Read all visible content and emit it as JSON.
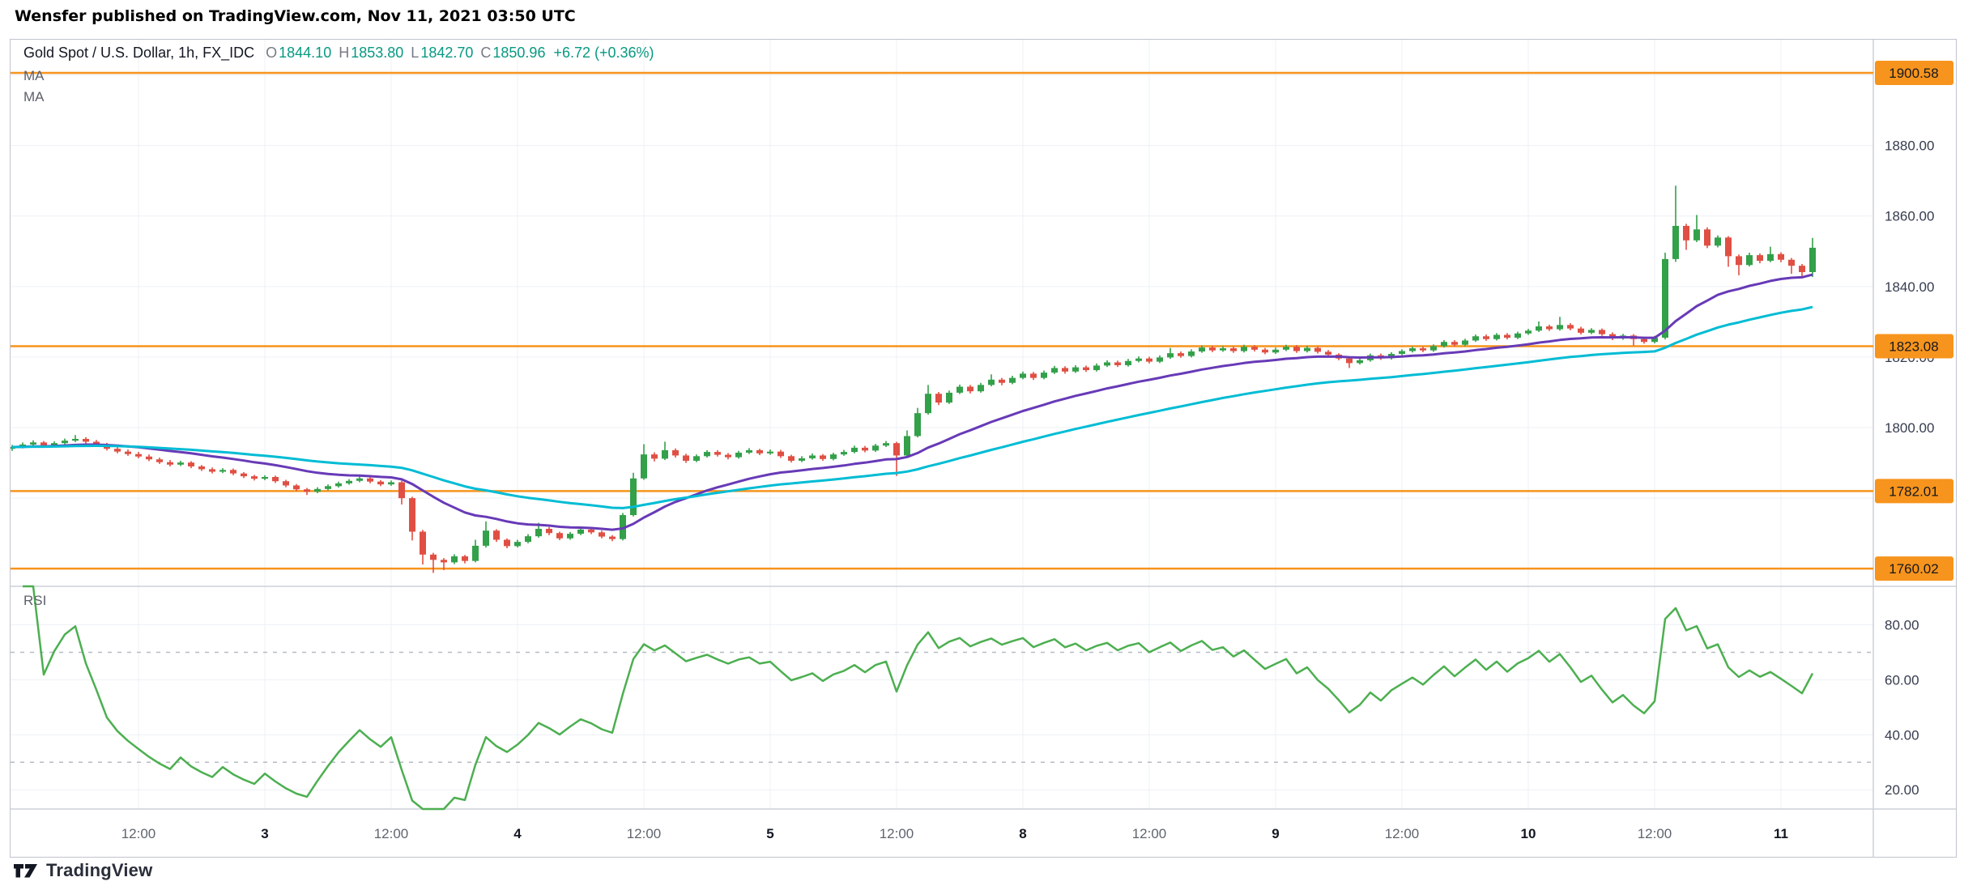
{
  "publish_header": "Wensfer published on TradingView.com, Nov 11, 2021 03:50 UTC",
  "footer": {
    "brand": "TradingView"
  },
  "legend": {
    "symbol_title": "Gold Spot / U.S. Dollar, 1h, FX_IDC",
    "ohlc": {
      "o_label": "O",
      "o": "1844.10",
      "h_label": "H",
      "h": "1853.80",
      "l_label": "L",
      "l": "1842.70",
      "c_label": "C",
      "c": "1850.96",
      "change": "+6.72 (+0.36%)"
    },
    "ma1_label": "MA",
    "ma2_label": "MA",
    "rsi_label": "RSI"
  },
  "colors": {
    "up": "#33a04a",
    "down": "#e04f43",
    "level": "#f7941d",
    "grid": "#edf0f6",
    "pane_border": "#ccd0d9",
    "axis_text": "#363c4e",
    "time_major": "#131722",
    "time_minor": "#5f646e",
    "badge_text": "#15181e",
    "rsi_band": "#b6bac4",
    "ohlc_value": "#089981",
    "label_gray": "#787b86"
  },
  "chart_data": {
    "type": "candlestick",
    "title": "Gold Spot / U.S. Dollar, 1h, FX_IDC",
    "legend_position": "top-left",
    "grid": true,
    "price_axis": {
      "min": 1755,
      "max": 1910,
      "ticks": [
        1900,
        1880,
        1860,
        1840,
        1820,
        1800,
        1780,
        1760
      ]
    },
    "time_ticks": [
      {
        "i": 12,
        "label": "12:00",
        "major": false
      },
      {
        "i": 24,
        "label": "3",
        "major": true
      },
      {
        "i": 36,
        "label": "12:00",
        "major": false
      },
      {
        "i": 48,
        "label": "4",
        "major": true
      },
      {
        "i": 60,
        "label": "12:00",
        "major": false
      },
      {
        "i": 72,
        "label": "5",
        "major": true
      },
      {
        "i": 84,
        "label": "12:00",
        "major": false
      },
      {
        "i": 96,
        "label": "8",
        "major": true
      },
      {
        "i": 108,
        "label": "12:00",
        "major": false
      },
      {
        "i": 120,
        "label": "9",
        "major": true
      },
      {
        "i": 132,
        "label": "12:00",
        "major": false
      },
      {
        "i": 144,
        "label": "10",
        "major": true
      },
      {
        "i": 156,
        "label": "12:00",
        "major": false
      },
      {
        "i": 168,
        "label": "11",
        "major": true
      }
    ],
    "levels": [
      {
        "price": 1900.58,
        "label": "1900.58"
      },
      {
        "price": 1823.08,
        "label": "1823.08"
      },
      {
        "price": 1782.01,
        "label": "1782.01"
      },
      {
        "price": 1760.02,
        "label": "1760.02"
      }
    ],
    "overlays": [
      {
        "name": "MA",
        "period": 21,
        "color": "#673ab7"
      },
      {
        "name": "MA",
        "period": 50,
        "color": "#00bcd4"
      }
    ],
    "rsi": {
      "name": "RSI",
      "period": 14,
      "color": "#4caf50",
      "axis": {
        "min": 13,
        "max": 94,
        "ticks": [
          80,
          60,
          40,
          20
        ],
        "bands": [
          70,
          30
        ]
      }
    },
    "candles_ohlc": [
      [
        1794.0,
        1795.1,
        1793.4,
        1794.5
      ],
      [
        1794.5,
        1795.8,
        1794.1,
        1795.2
      ],
      [
        1795.2,
        1796.4,
        1794.8,
        1795.8
      ],
      [
        1795.8,
        1796.2,
        1794.5,
        1795.0
      ],
      [
        1795.0,
        1796.1,
        1794.6,
        1795.6
      ],
      [
        1795.6,
        1796.9,
        1795.2,
        1796.3
      ],
      [
        1796.3,
        1797.9,
        1795.9,
        1796.8
      ],
      [
        1796.8,
        1797.3,
        1795.5,
        1796.0
      ],
      [
        1796.0,
        1796.5,
        1794.7,
        1795.2
      ],
      [
        1795.2,
        1795.7,
        1793.5,
        1794.0
      ],
      [
        1794.0,
        1794.6,
        1792.7,
        1793.2
      ],
      [
        1793.2,
        1793.8,
        1792.0,
        1792.5
      ],
      [
        1792.5,
        1793.1,
        1791.3,
        1791.8
      ],
      [
        1791.8,
        1792.4,
        1790.5,
        1791.0
      ],
      [
        1791.0,
        1791.5,
        1789.7,
        1790.2
      ],
      [
        1790.2,
        1790.8,
        1789.0,
        1789.5
      ],
      [
        1789.5,
        1790.6,
        1789.1,
        1790.1
      ],
      [
        1790.1,
        1790.5,
        1788.5,
        1789.0
      ],
      [
        1789.0,
        1789.4,
        1787.7,
        1788.2
      ],
      [
        1788.2,
        1788.7,
        1787.0,
        1787.5
      ],
      [
        1787.5,
        1788.5,
        1787.1,
        1788.0
      ],
      [
        1788.0,
        1788.4,
        1786.5,
        1787.0
      ],
      [
        1787.0,
        1787.4,
        1785.7,
        1786.2
      ],
      [
        1786.2,
        1786.6,
        1785.0,
        1785.5
      ],
      [
        1785.5,
        1786.5,
        1785.1,
        1786.0
      ],
      [
        1786.0,
        1786.4,
        1784.3,
        1784.8
      ],
      [
        1784.8,
        1785.2,
        1783.1,
        1783.6
      ],
      [
        1783.6,
        1784.0,
        1782.0,
        1782.5
      ],
      [
        1782.5,
        1782.9,
        1780.9,
        1781.8
      ],
      [
        1781.8,
        1783.1,
        1781.4,
        1782.6
      ],
      [
        1782.6,
        1783.9,
        1782.2,
        1783.4
      ],
      [
        1783.4,
        1784.7,
        1783.0,
        1784.2
      ],
      [
        1784.2,
        1785.4,
        1783.8,
        1784.9
      ],
      [
        1784.9,
        1786.1,
        1784.5,
        1785.6
      ],
      [
        1785.6,
        1786.0,
        1784.2,
        1784.7
      ],
      [
        1784.7,
        1785.1,
        1783.4,
        1783.9
      ],
      [
        1783.9,
        1785.0,
        1783.5,
        1784.5
      ],
      [
        1784.5,
        1784.9,
        1778.2,
        1780.0
      ],
      [
        1780.0,
        1780.4,
        1768.0,
        1770.5
      ],
      [
        1770.5,
        1771.0,
        1761.2,
        1764.0
      ],
      [
        1764.0,
        1764.5,
        1758.8,
        1762.5
      ],
      [
        1762.5,
        1763.0,
        1759.6,
        1761.8
      ],
      [
        1761.8,
        1764.1,
        1761.3,
        1763.5
      ],
      [
        1763.5,
        1763.9,
        1761.5,
        1762.2
      ],
      [
        1762.2,
        1768.2,
        1761.8,
        1766.5
      ],
      [
        1766.5,
        1773.4,
        1766.0,
        1770.8
      ],
      [
        1770.8,
        1771.2,
        1767.6,
        1768.2
      ],
      [
        1768.2,
        1768.6,
        1765.8,
        1766.4
      ],
      [
        1766.4,
        1768.2,
        1766.0,
        1767.6
      ],
      [
        1767.6,
        1769.8,
        1767.2,
        1769.2
      ],
      [
        1769.2,
        1773.0,
        1768.8,
        1771.3
      ],
      [
        1771.3,
        1771.8,
        1769.5,
        1770.1
      ],
      [
        1770.1,
        1770.5,
        1768.1,
        1768.6
      ],
      [
        1768.6,
        1770.4,
        1768.2,
        1769.9
      ],
      [
        1769.9,
        1771.7,
        1769.5,
        1771.1
      ],
      [
        1771.1,
        1771.6,
        1769.8,
        1770.3
      ],
      [
        1770.3,
        1770.8,
        1768.6,
        1769.1
      ],
      [
        1769.1,
        1769.5,
        1767.8,
        1768.4
      ],
      [
        1768.4,
        1775.8,
        1768.0,
        1775.2
      ],
      [
        1775.2,
        1787.2,
        1774.8,
        1785.6
      ],
      [
        1785.6,
        1795.3,
        1785.2,
        1792.4
      ],
      [
        1792.4,
        1793.0,
        1790.4,
        1791.2
      ],
      [
        1791.2,
        1796.0,
        1790.8,
        1793.6
      ],
      [
        1793.6,
        1794.1,
        1791.5,
        1792.1
      ],
      [
        1792.1,
        1792.6,
        1790.0,
        1790.6
      ],
      [
        1790.6,
        1792.4,
        1790.2,
        1791.9
      ],
      [
        1791.9,
        1793.6,
        1791.5,
        1793.1
      ],
      [
        1793.1,
        1793.6,
        1791.8,
        1792.3
      ],
      [
        1792.3,
        1792.8,
        1791.0,
        1791.6
      ],
      [
        1791.6,
        1793.4,
        1791.2,
        1792.9
      ],
      [
        1792.9,
        1794.2,
        1792.5,
        1793.6
      ],
      [
        1793.6,
        1794.0,
        1792.2,
        1792.7
      ],
      [
        1792.7,
        1793.8,
        1792.3,
        1793.2
      ],
      [
        1793.2,
        1793.7,
        1791.4,
        1791.9
      ],
      [
        1791.9,
        1792.3,
        1790.1,
        1790.6
      ],
      [
        1790.6,
        1791.9,
        1790.2,
        1791.3
      ],
      [
        1791.3,
        1792.7,
        1790.9,
        1792.1
      ],
      [
        1792.1,
        1792.5,
        1790.6,
        1791.1
      ],
      [
        1791.1,
        1792.9,
        1790.7,
        1792.4
      ],
      [
        1792.4,
        1793.7,
        1792.0,
        1793.1
      ],
      [
        1793.1,
        1794.9,
        1792.7,
        1794.3
      ],
      [
        1794.3,
        1794.8,
        1793.0,
        1793.5
      ],
      [
        1793.5,
        1795.4,
        1793.1,
        1794.9
      ],
      [
        1794.9,
        1796.2,
        1794.5,
        1795.6
      ],
      [
        1795.6,
        1796.0,
        1786.3,
        1792.1
      ],
      [
        1792.1,
        1799.2,
        1791.7,
        1797.6
      ],
      [
        1797.6,
        1805.6,
        1797.2,
        1804.1
      ],
      [
        1804.1,
        1812.1,
        1803.7,
        1809.6
      ],
      [
        1809.6,
        1810.1,
        1806.4,
        1807.1
      ],
      [
        1807.1,
        1810.5,
        1806.7,
        1809.9
      ],
      [
        1809.9,
        1812.2,
        1809.5,
        1811.6
      ],
      [
        1811.6,
        1812.1,
        1809.7,
        1810.3
      ],
      [
        1810.3,
        1812.7,
        1809.9,
        1812.1
      ],
      [
        1812.1,
        1815.1,
        1811.7,
        1813.6
      ],
      [
        1813.6,
        1814.1,
        1812.0,
        1812.7
      ],
      [
        1812.7,
        1814.7,
        1812.3,
        1814.1
      ],
      [
        1814.1,
        1815.9,
        1813.7,
        1815.3
      ],
      [
        1815.3,
        1815.8,
        1813.5,
        1814.1
      ],
      [
        1814.1,
        1816.2,
        1813.7,
        1815.6
      ],
      [
        1815.6,
        1817.5,
        1815.2,
        1816.9
      ],
      [
        1816.9,
        1817.4,
        1815.3,
        1815.9
      ],
      [
        1815.9,
        1817.7,
        1815.5,
        1817.1
      ],
      [
        1817.1,
        1817.6,
        1815.8,
        1816.3
      ],
      [
        1816.3,
        1818.2,
        1815.9,
        1817.6
      ],
      [
        1817.6,
        1819.1,
        1817.2,
        1818.5
      ],
      [
        1818.5,
        1819.0,
        1817.2,
        1817.7
      ],
      [
        1817.7,
        1819.5,
        1817.3,
        1818.9
      ],
      [
        1818.9,
        1820.2,
        1818.5,
        1819.6
      ],
      [
        1819.6,
        1820.1,
        1818.2,
        1818.7
      ],
      [
        1818.7,
        1820.5,
        1818.3,
        1819.9
      ],
      [
        1819.9,
        1822.6,
        1819.5,
        1821.1
      ],
      [
        1821.1,
        1821.6,
        1819.8,
        1820.3
      ],
      [
        1820.3,
        1822.2,
        1819.9,
        1821.6
      ],
      [
        1821.6,
        1823.3,
        1821.2,
        1822.7
      ],
      [
        1822.7,
        1823.2,
        1821.4,
        1821.9
      ],
      [
        1821.9,
        1823.1,
        1821.5,
        1822.5
      ],
      [
        1822.5,
        1823.0,
        1821.2,
        1821.7
      ],
      [
        1821.7,
        1823.5,
        1821.3,
        1822.9
      ],
      [
        1822.9,
        1823.4,
        1821.6,
        1822.1
      ],
      [
        1822.1,
        1822.6,
        1820.8,
        1821.3
      ],
      [
        1821.3,
        1822.7,
        1820.9,
        1822.1
      ],
      [
        1822.1,
        1823.5,
        1821.7,
        1822.9
      ],
      [
        1822.9,
        1823.4,
        1821.2,
        1821.7
      ],
      [
        1821.7,
        1823.2,
        1821.3,
        1822.6
      ],
      [
        1822.6,
        1823.0,
        1821.0,
        1821.5
      ],
      [
        1821.5,
        1822.0,
        1820.2,
        1820.7
      ],
      [
        1820.7,
        1821.1,
        1819.1,
        1819.6
      ],
      [
        1819.6,
        1820.0,
        1816.9,
        1818.3
      ],
      [
        1818.3,
        1819.7,
        1817.9,
        1819.1
      ],
      [
        1819.1,
        1821.0,
        1818.7,
        1820.5
      ],
      [
        1820.5,
        1821.0,
        1819.2,
        1819.7
      ],
      [
        1819.7,
        1821.4,
        1819.3,
        1820.9
      ],
      [
        1820.9,
        1822.2,
        1820.5,
        1821.7
      ],
      [
        1821.7,
        1823.0,
        1821.3,
        1822.5
      ],
      [
        1822.5,
        1823.0,
        1821.4,
        1821.9
      ],
      [
        1821.9,
        1823.6,
        1821.5,
        1823.1
      ],
      [
        1823.1,
        1824.8,
        1822.7,
        1824.3
      ],
      [
        1824.3,
        1824.8,
        1823.0,
        1823.5
      ],
      [
        1823.5,
        1825.2,
        1823.1,
        1824.7
      ],
      [
        1824.7,
        1826.4,
        1824.3,
        1825.9
      ],
      [
        1825.9,
        1826.4,
        1824.6,
        1825.1
      ],
      [
        1825.1,
        1826.8,
        1824.7,
        1826.3
      ],
      [
        1826.3,
        1826.8,
        1825.0,
        1825.5
      ],
      [
        1825.5,
        1827.2,
        1825.1,
        1826.7
      ],
      [
        1826.7,
        1828.0,
        1826.3,
        1827.5
      ],
      [
        1827.5,
        1830.1,
        1827.1,
        1828.7
      ],
      [
        1828.7,
        1829.2,
        1827.4,
        1827.9
      ],
      [
        1827.9,
        1831.4,
        1827.5,
        1829.1
      ],
      [
        1829.1,
        1829.6,
        1827.6,
        1828.1
      ],
      [
        1828.1,
        1828.6,
        1826.4,
        1826.9
      ],
      [
        1826.9,
        1828.2,
        1826.5,
        1827.7
      ],
      [
        1827.7,
        1828.1,
        1826.0,
        1826.5
      ],
      [
        1826.5,
        1827.0,
        1824.8,
        1825.3
      ],
      [
        1825.3,
        1826.6,
        1824.9,
        1826.1
      ],
      [
        1826.1,
        1826.5,
        1823.3,
        1825.1
      ],
      [
        1825.1,
        1825.6,
        1823.8,
        1824.3
      ],
      [
        1824.3,
        1826.0,
        1823.9,
        1825.5
      ],
      [
        1825.5,
        1849.6,
        1825.0,
        1847.8
      ],
      [
        1847.8,
        1868.6,
        1847.0,
        1857.2
      ],
      [
        1857.2,
        1857.8,
        1850.4,
        1853.1
      ],
      [
        1853.1,
        1860.3,
        1852.6,
        1856.2
      ],
      [
        1856.2,
        1856.8,
        1850.9,
        1851.6
      ],
      [
        1851.6,
        1854.5,
        1851.1,
        1853.9
      ],
      [
        1853.9,
        1854.3,
        1845.6,
        1848.6
      ],
      [
        1848.6,
        1849.1,
        1843.2,
        1846.1
      ],
      [
        1846.1,
        1849.6,
        1845.7,
        1848.9
      ],
      [
        1848.9,
        1849.4,
        1846.6,
        1847.3
      ],
      [
        1847.3,
        1851.3,
        1846.9,
        1849.2
      ],
      [
        1849.2,
        1849.7,
        1846.9,
        1847.6
      ],
      [
        1847.6,
        1848.1,
        1843.6,
        1845.9
      ],
      [
        1845.9,
        1846.4,
        1842.8,
        1844.1
      ],
      [
        1844.1,
        1853.8,
        1842.7,
        1851.0
      ]
    ]
  }
}
